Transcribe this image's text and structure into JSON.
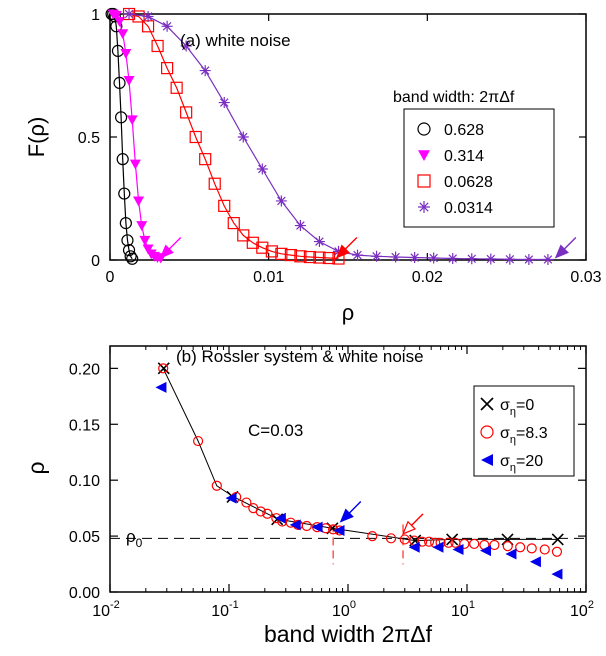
{
  "chart_data": [
    {
      "type": "line",
      "annotation": "(a) white noise",
      "xlabel": "ρ",
      "ylabel": "F(ρ)",
      "xlim": [
        0,
        0.03
      ],
      "ylim": [
        0,
        1
      ],
      "xticks": [
        0,
        0.01,
        0.02,
        0.03
      ],
      "xtick_labels": [
        "0",
        "0.01",
        "0.02",
        "0.03"
      ],
      "yticks": [
        0,
        0.5,
        1
      ],
      "ytick_labels": [
        "0",
        "0.5",
        "1"
      ],
      "legend_title": "band width: 2πΔf",
      "legend_position": "right",
      "series": [
        {
          "name": "0.628",
          "marker": "circle-open",
          "color": "#000000",
          "x": [
            0.0001,
            0.0002,
            0.0003,
            0.0004,
            0.0005,
            0.0006,
            0.0007,
            0.0008,
            0.0009,
            0.001,
            0.0011,
            0.0012,
            0.0013,
            0.0014
          ],
          "y": [
            1,
            1,
            0.99,
            0.95,
            0.85,
            0.72,
            0.58,
            0.41,
            0.27,
            0.15,
            0.08,
            0.04,
            0.015,
            0.005
          ]
        },
        {
          "name": "0.314",
          "marker": "triangle-down-filled",
          "color": "#ff00ff",
          "x": [
            0.0002,
            0.0004,
            0.0006,
            0.0008,
            0.001,
            0.0012,
            0.0014,
            0.0016,
            0.0018,
            0.002,
            0.0022,
            0.0024,
            0.0026,
            0.0028,
            0.003,
            0.0032
          ],
          "y": [
            1,
            0.995,
            0.97,
            0.92,
            0.84,
            0.73,
            0.57,
            0.39,
            0.24,
            0.14,
            0.08,
            0.045,
            0.025,
            0.015,
            0.01,
            0.008
          ]
        },
        {
          "name": "0.0628",
          "marker": "square-open",
          "color": "#ff0000",
          "x": [
            0.0012,
            0.0018,
            0.0024,
            0.003,
            0.0036,
            0.0042,
            0.0048,
            0.0054,
            0.006,
            0.0066,
            0.0072,
            0.0078,
            0.0084,
            0.009,
            0.0096,
            0.0102,
            0.0108,
            0.0114,
            0.012,
            0.0126,
            0.0132,
            0.0138,
            0.0144
          ],
          "y": [
            1,
            0.99,
            0.95,
            0.87,
            0.78,
            0.7,
            0.6,
            0.5,
            0.41,
            0.31,
            0.22,
            0.15,
            0.1,
            0.07,
            0.05,
            0.035,
            0.025,
            0.02,
            0.015,
            0.012,
            0.01,
            0.008,
            0.006
          ]
        },
        {
          "name": "0.0314",
          "marker": "star",
          "color": "#7a2fc0",
          "x": [
            0.0012,
            0.0024,
            0.0036,
            0.0048,
            0.006,
            0.0072,
            0.0084,
            0.0096,
            0.0108,
            0.012,
            0.0132,
            0.0144,
            0.0156,
            0.0168,
            0.018,
            0.0192,
            0.0204,
            0.0216,
            0.0228,
            0.024,
            0.0252,
            0.0264,
            0.0276
          ],
          "y": [
            1,
            0.99,
            0.95,
            0.87,
            0.77,
            0.64,
            0.5,
            0.37,
            0.24,
            0.14,
            0.075,
            0.035,
            0.02,
            0.015,
            0.012,
            0.01,
            0.008,
            0.006,
            0.005,
            0.004,
            0.003,
            0.002,
            0.002
          ]
        }
      ],
      "arrows": [
        {
          "color": "#ff00ff",
          "x": 0.0032,
          "y": 0.01
        },
        {
          "color": "#ff0000",
          "x": 0.0143,
          "y": 0.01
        },
        {
          "color": "#7a2fc0",
          "x": 0.0281,
          "y": 0.01
        }
      ]
    },
    {
      "type": "scatter",
      "annotation": "(b) Rossler system & white noise",
      "label_c": "C=0.03",
      "label_rho0": "ρ",
      "label_rho0_sub": "0",
      "xlabel": "band width   2πΔf",
      "ylabel": "ρ",
      "xscale": "log",
      "xlim": [
        0.01,
        100
      ],
      "ylim": [
        0,
        0.22
      ],
      "xtick_bases": [
        "10",
        "10",
        "10",
        "10",
        "10"
      ],
      "xtick_exps": [
        "-2",
        "-1",
        "0",
        "1",
        "2"
      ],
      "yticks": [
        0,
        0.05,
        0.1,
        0.15,
        0.2
      ],
      "ytick_labels": [
        "0.00",
        "0.05",
        "0.10",
        "0.15",
        "0.20"
      ],
      "rho0": 0.048,
      "legend_position": "right",
      "series": [
        {
          "name_main": "σ",
          "name_sub": "η",
          "name_tail": "=0",
          "marker": "x",
          "color": "#000000",
          "x": [
            0.0283,
            0.107,
            0.254,
            0.74,
            3.67,
            7.5,
            21.9,
            57.9
          ],
          "y": [
            0.2,
            0.085,
            0.065,
            0.057,
            0.046,
            0.047,
            0.047,
            0.047
          ]
        },
        {
          "name_main": "σ",
          "name_sub": "η",
          "name_tail": "=8.3",
          "marker": "circle-open",
          "color": "#ff0000",
          "x": [
            0.028,
            0.055,
            0.079,
            0.115,
            0.14,
            0.16,
            0.185,
            0.21,
            0.25,
            0.28,
            0.33,
            0.38,
            0.45,
            0.55,
            0.65,
            0.75,
            0.85,
            1.6,
            2.3,
            3.0,
            3.6,
            4.2,
            4.8,
            5.4,
            6.0,
            7.0,
            8.0,
            9.5,
            11.5,
            14,
            17,
            22,
            28,
            35,
            45,
            57
          ],
          "y": [
            0.2,
            0.135,
            0.095,
            0.085,
            0.08,
            0.075,
            0.072,
            0.07,
            0.066,
            0.063,
            0.062,
            0.06,
            0.059,
            0.058,
            0.057,
            0.056,
            0.055,
            0.05,
            0.048,
            0.047,
            0.046,
            0.045,
            0.045,
            0.044,
            0.044,
            0.044,
            0.044,
            0.043,
            0.043,
            0.042,
            0.042,
            0.041,
            0.04,
            0.039,
            0.038,
            0.036
          ]
        },
        {
          "name_main": "σ",
          "name_sub": "η",
          "name_tail": "=20",
          "marker": "triangle-left-filled",
          "color": "#0000ee",
          "x": [
            0.0268,
            0.104,
            0.27,
            0.36,
            0.55,
            0.84,
            3.6,
            5.7,
            8.4,
            14.3,
            23.4,
            37.6,
            57
          ],
          "y": [
            0.183,
            0.084,
            0.066,
            0.06,
            0.058,
            0.055,
            0.04,
            0.04,
            0.038,
            0.037,
            0.034,
            0.027,
            0.016
          ]
        }
      ],
      "fit_line": {
        "x": [
          0.028,
          0.055,
          0.079,
          0.11,
          0.26,
          0.74,
          3.67,
          7.5,
          21.9,
          57.9
        ],
        "y": [
          0.2,
          0.135,
          0.095,
          0.085,
          0.065,
          0.057,
          0.046,
          0.047,
          0.047,
          0.047
        ]
      },
      "markers_vertical": [
        {
          "x": 0.75,
          "color": "#ff0000"
        },
        {
          "x": 2.9,
          "color": "#ff0000"
        }
      ],
      "arrows": [
        {
          "color": "#0000ee",
          "style": "filled",
          "x": 0.87,
          "y": 0.063
        },
        {
          "color": "#ff0000",
          "style": "open",
          "x": 2.9,
          "y": 0.052
        }
      ]
    }
  ]
}
